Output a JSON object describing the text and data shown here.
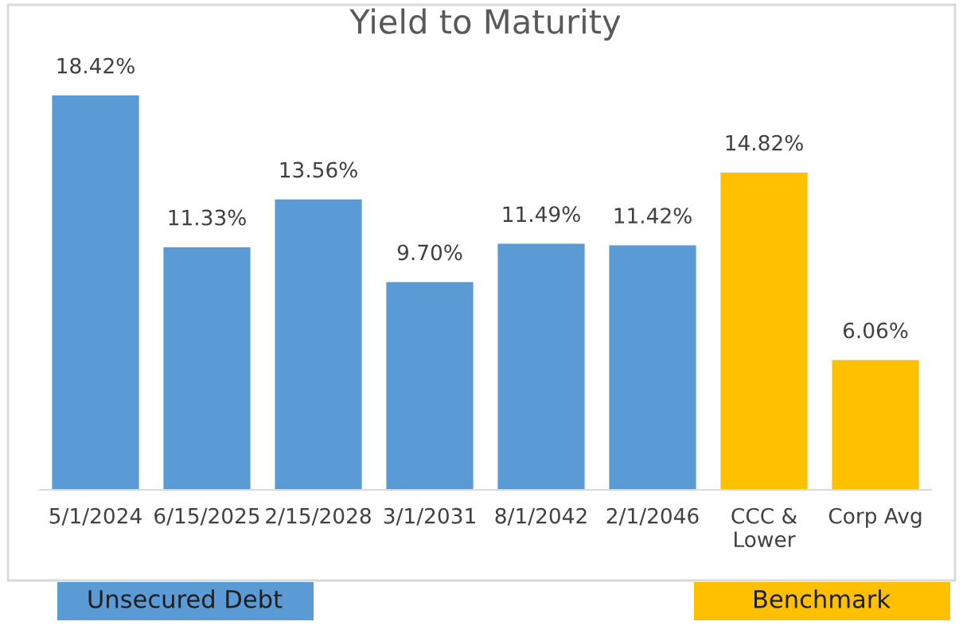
{
  "chart_data": {
    "type": "bar",
    "title": "Yield to Maturity",
    "categories": [
      "5/1/2024",
      "6/15/2025",
      "2/15/2028",
      "3/1/2031",
      "8/1/2042",
      "2/1/2046",
      "CCC &\nLower",
      "Corp Avg"
    ],
    "series": [
      {
        "name": "Unsecured Debt",
        "color": "#5b9bd5",
        "values": [
          18.42,
          11.33,
          13.56,
          9.7,
          11.49,
          11.42,
          null,
          null
        ],
        "value_labels": [
          "18.42%",
          "11.33%",
          "13.56%",
          "9.70%",
          "11.49%",
          "11.42%",
          null,
          null
        ]
      },
      {
        "name": "Benchmark",
        "color": "#ffc000",
        "values": [
          null,
          null,
          null,
          null,
          null,
          null,
          14.82,
          6.06
        ],
        "value_labels": [
          null,
          null,
          null,
          null,
          null,
          null,
          "14.82%",
          "6.06%"
        ]
      }
    ],
    "stacked": true,
    "legend": "bottom",
    "grid": false,
    "tick_labels": "x"
  }
}
